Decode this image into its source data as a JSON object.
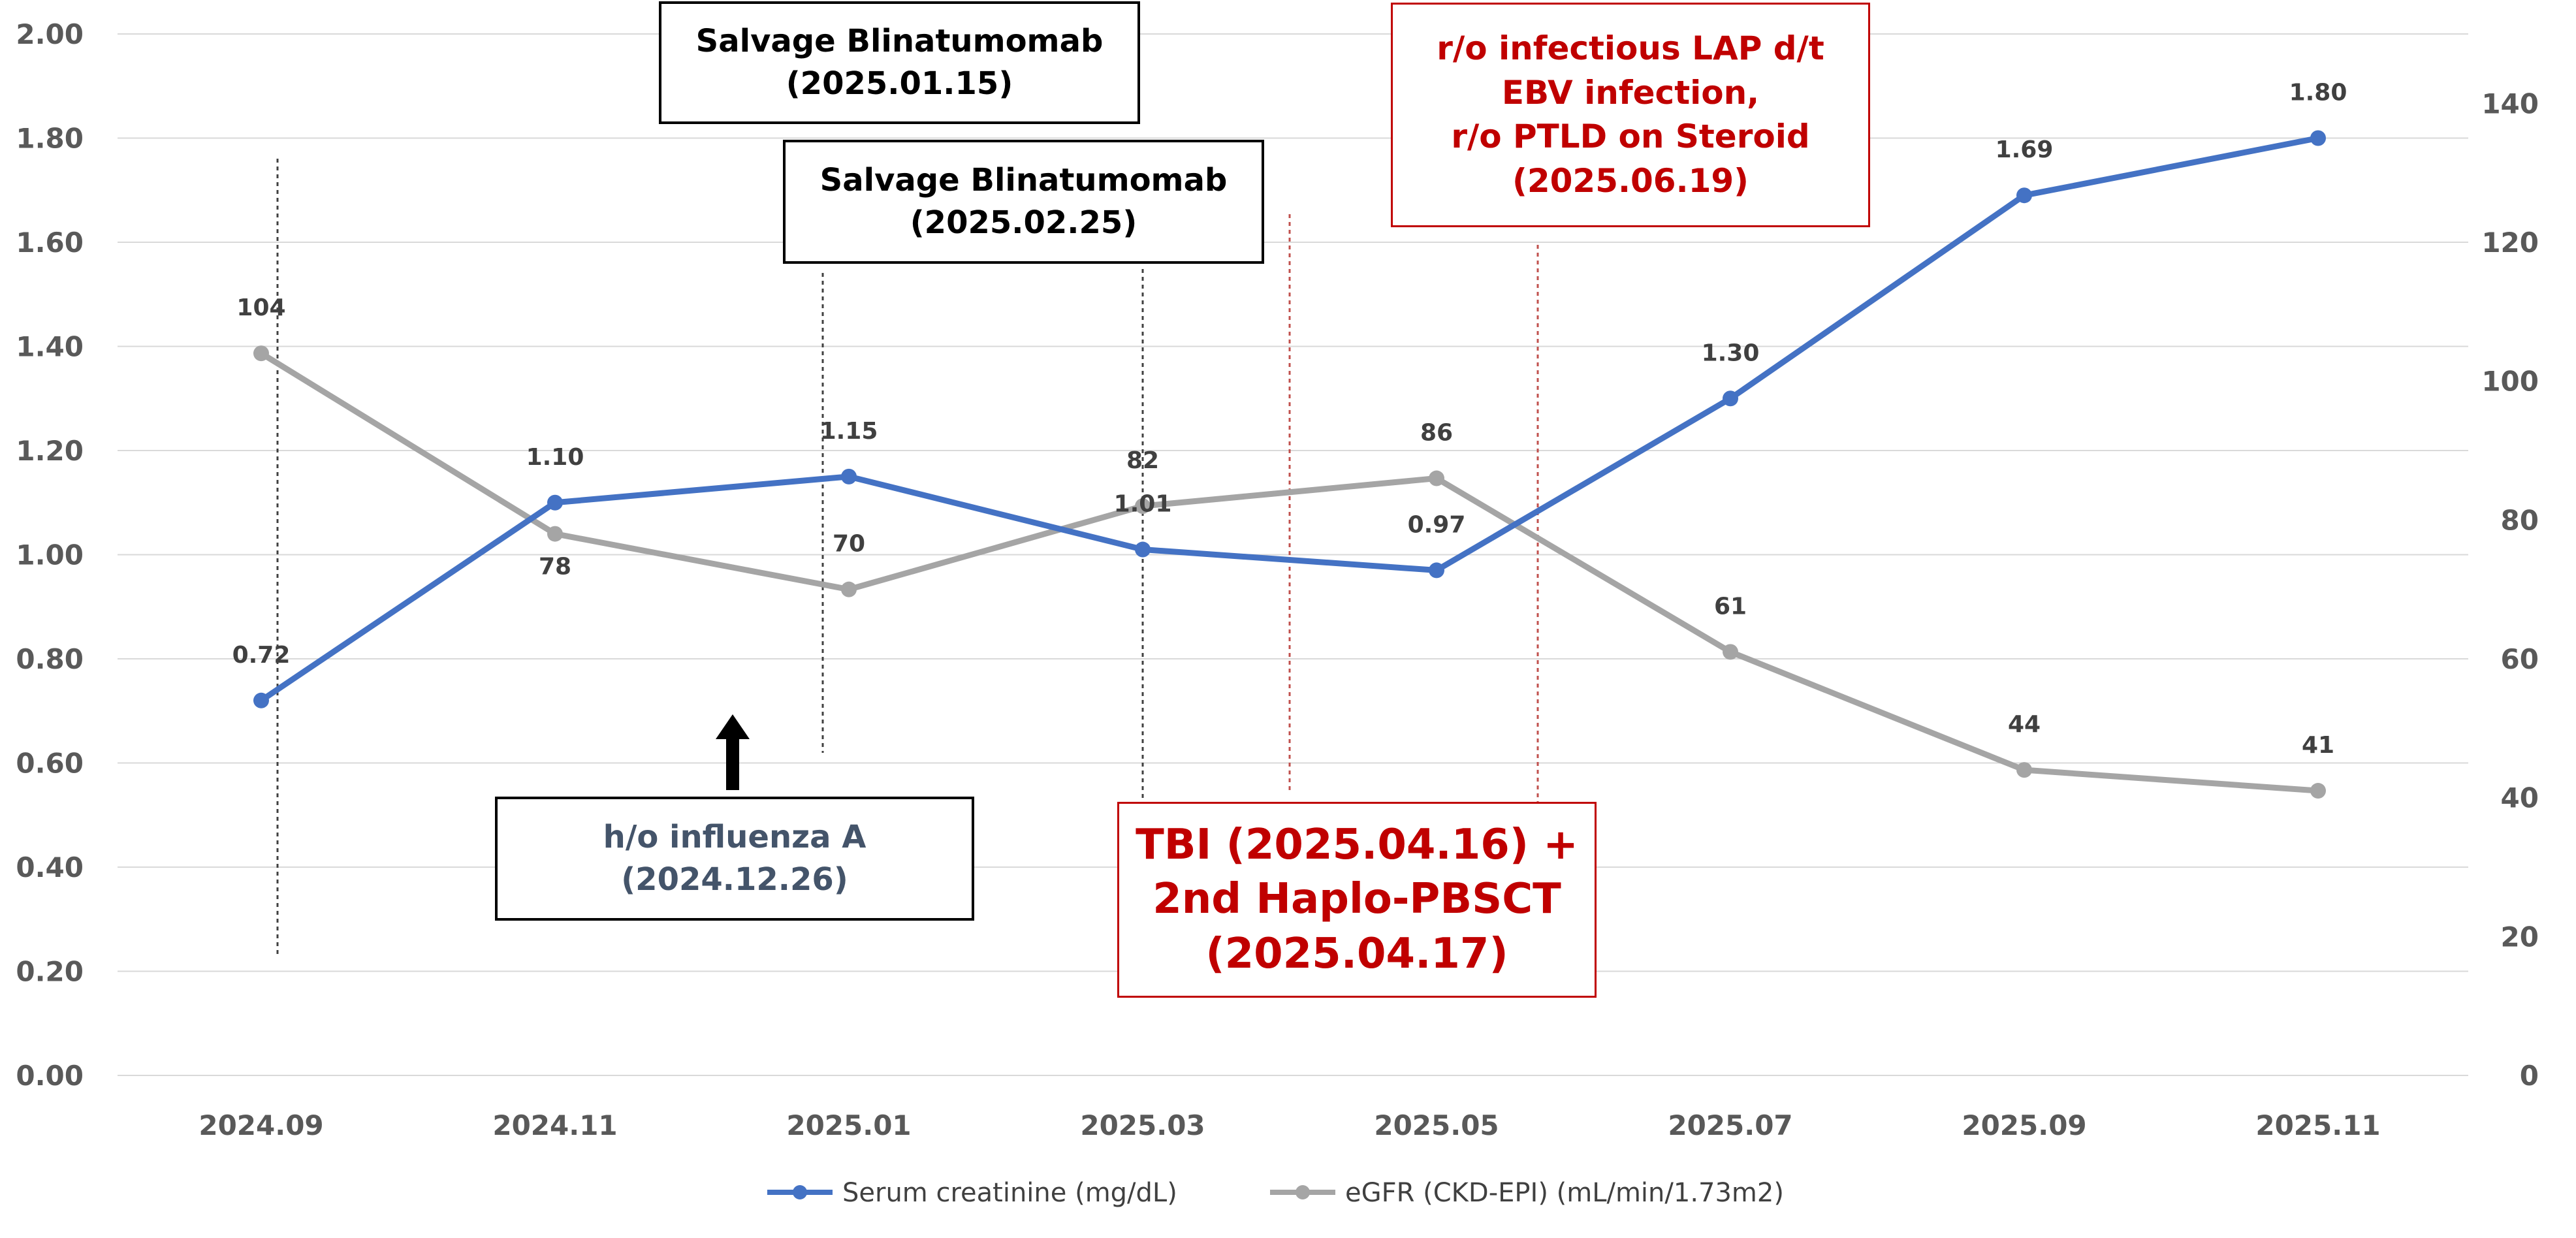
{
  "colors": {
    "creatinine": "#4472c4",
    "egfr": "#a5a5a5",
    "grid": "#d9d9d9",
    "annotation_red": "#c00000",
    "annotation_navy": "#44546a",
    "text": "#595959"
  },
  "chart_data": {
    "type": "line",
    "categories": [
      "2024.09",
      "2024.11",
      "2025.01",
      "2025.03",
      "2025.05",
      "2025.07",
      "2025.09",
      "2025.11"
    ],
    "series": [
      {
        "name": "Serum creatinine (mg/dL)",
        "axis": "left",
        "x": [
          "2024.09",
          "2024.11",
          "2025.01",
          "2025.03",
          "2025.05",
          "2025.07",
          "2025.09",
          "2025.11"
        ],
        "values": [
          0.72,
          1.1,
          1.15,
          1.01,
          0.97,
          1.3,
          1.69,
          1.8
        ],
        "labels": [
          "0.72",
          "1.10",
          "1.15",
          "1.01",
          "0.97",
          "1.30",
          "1.69",
          "1.80"
        ]
      },
      {
        "name": "eGFR (CKD-EPI) (mL/min/1.73m2)",
        "axis": "right",
        "x": [
          "2024.09",
          "2024.11",
          "2025.01",
          "2025.03",
          "2025.05",
          "2025.07",
          "2025.09",
          "2025.11"
        ],
        "values": [
          104,
          78,
          70,
          82,
          86,
          61,
          44,
          41
        ],
        "labels": [
          "104",
          "78",
          "70",
          "82",
          "86",
          "61",
          "44",
          "41"
        ]
      }
    ],
    "y_left": {
      "ylim": [
        0,
        2.0
      ],
      "ticks": [
        "0.00",
        "0.20",
        "0.40",
        "0.60",
        "0.80",
        "1.00",
        "1.20",
        "1.40",
        "1.60",
        "1.80",
        "2.00"
      ]
    },
    "y_right": {
      "ylim": [
        0,
        150
      ],
      "ticks": [
        "0",
        "20",
        "40",
        "60",
        "80",
        "100",
        "120",
        "140"
      ]
    },
    "grid": true,
    "legend": "bottom",
    "event_markers": [
      {
        "x": "2024.09",
        "style": "dark"
      },
      {
        "x": "2025.01",
        "style": "dark"
      },
      {
        "x": "2025.03",
        "style": "dark"
      },
      {
        "x": "2025.04",
        "style": "red"
      },
      {
        "x": "2025.06",
        "style": "red"
      }
    ],
    "annotations": [
      {
        "id": "blina1",
        "text": "Salvage Blinatumomab\n(2025.01.15)",
        "style": "black"
      },
      {
        "id": "blina2",
        "text": "Salvage Blinatumomab\n(2025.02.25)",
        "style": "black"
      },
      {
        "id": "influenza",
        "text": "h/o influenza A\n(2024.12.26)",
        "style": "navy"
      },
      {
        "id": "tbi",
        "text": "TBI (2025.04.16) +\n2nd Haplo-PBSCT\n(2025.04.17)",
        "style": "red"
      },
      {
        "id": "ebv",
        "text": "r/o infectious LAP d/t\nEBV infection,\nr/o PTLD on Steroid\n(2025.06.19)",
        "style": "red"
      }
    ]
  }
}
